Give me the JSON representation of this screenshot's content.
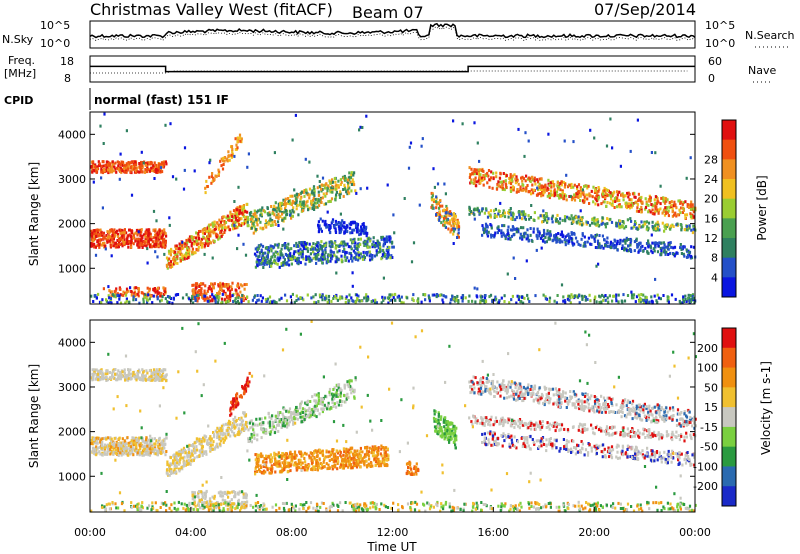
{
  "header": {
    "title": "Christmas Valley West (fitACF)",
    "beam": "Beam 07",
    "date": "07/Sep/2014"
  },
  "chart_data": [
    {
      "type": "line",
      "panel": "noise",
      "left_label": "N.Sky",
      "right_label": "N.Search",
      "left_ticks": [
        "10^5",
        "10^0"
      ],
      "right_ticks": [
        "10^5",
        "10^0"
      ]
    },
    {
      "type": "line",
      "panel": "frequency",
      "left_label": [
        "Freq.",
        "[MHz]"
      ],
      "right_label": "Nave",
      "left_ticks": [
        "18",
        "8"
      ],
      "right_ticks": [
        "60",
        "0"
      ],
      "freq_steps": [
        {
          "start": 0,
          "end": 3.0,
          "value": 14
        },
        {
          "start": 3.0,
          "end": 15.0,
          "value": 12
        },
        {
          "start": 15.0,
          "end": 24.0,
          "value": 14
        }
      ],
      "ylim": [
        8,
        18
      ]
    },
    {
      "type": "text",
      "panel": "cpid",
      "label": "CPID",
      "program": "normal (fast) 151 IF"
    },
    {
      "type": "heatmap",
      "panel": "power",
      "ylabel": "Slant Range [km]",
      "xlim": [
        0,
        24
      ],
      "ylim": [
        200,
        4500
      ],
      "yticks": [
        "1000",
        "2000",
        "3000",
        "4000"
      ],
      "colorbar": {
        "label": "Power [dB]",
        "ticks": [
          "4",
          "8",
          "12",
          "16",
          "20",
          "24",
          "28"
        ],
        "colors": [
          "#0a16e0",
          "#2450c8",
          "#2f8060",
          "#4aa050",
          "#9acd32",
          "#f0c020",
          "#f09020",
          "#f05010",
          "#e01010"
        ]
      }
    },
    {
      "type": "heatmap",
      "panel": "velocity",
      "ylabel": "Slant Range [km]",
      "xlabel": "Time UT",
      "xlim": [
        0,
        24
      ],
      "ylim": [
        200,
        4500
      ],
      "xticks": [
        "00:00",
        "04:00",
        "08:00",
        "12:00",
        "16:00",
        "20:00",
        "00:00"
      ],
      "yticks": [
        "1000",
        "2000",
        "3000",
        "4000"
      ],
      "colorbar": {
        "label": "Velocity [m s-1]",
        "ticks": [
          "200",
          "100",
          "50",
          "15",
          "-15",
          "-50",
          "-100",
          "-200"
        ],
        "colors": [
          "#1a2ac8",
          "#2a6ab0",
          "#2a9a40",
          "#7ad040",
          "#c8c8c0",
          "#f0c030",
          "#f09010",
          "#f06010",
          "#e01010"
        ]
      }
    }
  ]
}
